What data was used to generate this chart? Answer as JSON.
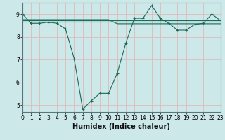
{
  "title": "",
  "xlabel": "Humidex (Indice chaleur)",
  "background_color": "#cce8e8",
  "grid_color": "#ddbbbb",
  "line_color": "#1a6b5a",
  "xlim": [
    0,
    23
  ],
  "ylim": [
    4.7,
    9.5
  ],
  "xticks": [
    0,
    1,
    2,
    3,
    4,
    5,
    6,
    7,
    8,
    9,
    10,
    11,
    12,
    13,
    14,
    15,
    16,
    17,
    18,
    19,
    20,
    21,
    22,
    23
  ],
  "yticks": [
    5,
    6,
    7,
    8,
    9
  ],
  "series": [
    [
      9.0,
      8.6,
      8.6,
      8.65,
      8.6,
      8.35,
      7.05,
      4.82,
      5.2,
      5.52,
      5.52,
      6.4,
      7.72,
      8.82,
      8.82,
      9.38,
      8.82,
      8.6,
      8.3,
      8.3,
      8.55,
      8.6,
      9.0,
      8.72
    ],
    [
      8.68,
      8.68,
      8.68,
      8.68,
      8.68,
      8.68,
      8.68,
      8.68,
      8.68,
      8.68,
      8.68,
      8.68,
      8.68,
      8.68,
      8.68,
      8.68,
      8.68,
      8.68,
      8.68,
      8.68,
      8.68,
      8.68,
      8.68,
      8.68
    ],
    [
      8.72,
      8.72,
      8.72,
      8.72,
      8.72,
      8.72,
      8.72,
      8.72,
      8.72,
      8.72,
      8.72,
      8.72,
      8.72,
      8.72,
      8.72,
      8.72,
      8.72,
      8.72,
      8.72,
      8.72,
      8.72,
      8.72,
      8.72,
      8.72
    ],
    [
      8.76,
      8.76,
      8.76,
      8.76,
      8.76,
      8.76,
      8.76,
      8.76,
      8.76,
      8.76,
      8.76,
      8.58,
      8.58,
      8.58,
      8.58,
      8.58,
      8.58,
      8.58,
      8.58,
      8.58,
      8.58,
      8.58,
      8.58,
      8.58
    ]
  ],
  "series_markers": [
    true,
    false,
    false,
    false
  ],
  "marker": "+",
  "marker_size": 3,
  "line_width": 0.8,
  "xlabel_fontsize": 7,
  "xlabel_bold": true,
  "tick_fontsize": 5.5
}
